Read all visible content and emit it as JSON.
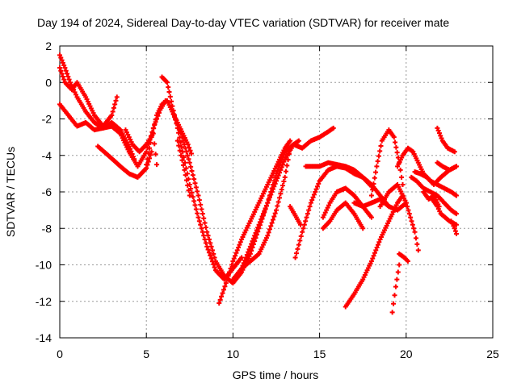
{
  "chart_data": {
    "type": "scatter",
    "title": "Day 194 of 2024, Sidereal Day-to-day VTEC variation (SDTVAR) for receiver mate",
    "xlabel": "GPS time / hours",
    "ylabel": "SDTVAR / TECUs",
    "xlim": [
      0,
      25
    ],
    "ylim": [
      -14,
      2
    ],
    "xticks": [
      0,
      5,
      10,
      15,
      20,
      25
    ],
    "yticks": [
      2,
      0,
      -2,
      -4,
      -6,
      -8,
      -10,
      -12,
      -14
    ],
    "grid": true,
    "marker": "+",
    "color": "#ff0000",
    "series": [
      {
        "x": [
          0,
          0.3,
          0.6,
          1.0,
          1.5,
          2.0,
          2.5,
          3.0,
          3.5,
          4.0,
          4.3
        ],
        "y": [
          1.5,
          0.8,
          0.0,
          -0.8,
          -1.6,
          -2.2,
          -2.5,
          -2.2,
          -2.6,
          -3.5,
          -4.2
        ]
      },
      {
        "x": [
          0,
          0.5,
          1.0,
          1.5,
          2.0,
          2.5,
          3.0,
          3.5,
          4.0,
          4.5,
          5.0,
          5.4,
          5.8,
          6.1
        ],
        "y": [
          -1.2,
          -1.8,
          -2.4,
          -2.2,
          -2.6,
          -2.5,
          -2.4,
          -2.8,
          -3.8,
          -4.6,
          -3.8,
          -2.5,
          -1.5,
          -1.0
        ]
      },
      {
        "x": [
          0,
          0.3,
          0.7,
          1.0,
          1.5,
          2.0,
          2.5,
          3.0,
          3.3
        ],
        "y": [
          0.8,
          0.0,
          -0.4,
          0.0,
          -0.8,
          -1.8,
          -2.4,
          -1.8,
          -0.8
        ]
      },
      {
        "x": [
          2.2,
          2.8,
          3.5,
          4.0,
          4.5,
          5.0,
          5.3
        ],
        "y": [
          -3.5,
          -4.0,
          -4.6,
          -5.0,
          -5.2,
          -4.7,
          -3.8
        ]
      },
      {
        "x": [
          3.8,
          4.2,
          4.6,
          5.0,
          5.4,
          5.6
        ],
        "y": [
          -2.6,
          -3.4,
          -3.8,
          -3.4,
          -2.8,
          -4.5
        ]
      },
      {
        "x": [
          5.0,
          5.3,
          5.6,
          5.9,
          6.2,
          6.5,
          6.8,
          7.1,
          7.4,
          7.6
        ],
        "y": [
          -4.5,
          -3.0,
          -1.8,
          -1.2,
          -1.0,
          -1.6,
          -2.2,
          -2.8,
          -3.4,
          -3.9
        ]
      },
      {
        "x": [
          5.9,
          6.2,
          6.5,
          6.8,
          7.1,
          7.5,
          8.0,
          8.5,
          9.0,
          9.5,
          10.0,
          10.5
        ],
        "y": [
          0.3,
          0.0,
          -1.3,
          -2.5,
          -3.8,
          -5.6,
          -7.4,
          -9.0,
          -10.3,
          -10.8,
          -10.2,
          -9.6
        ]
      },
      {
        "x": [
          6.8,
          7.2,
          7.5
        ],
        "y": [
          -3.2,
          -4.8,
          -6.2
        ]
      },
      {
        "x": [
          6.5,
          7.0,
          7.5,
          8.0,
          8.5,
          9.0,
          9.5,
          10.0,
          10.5,
          11.0,
          11.5,
          12.0,
          12.5,
          13.0,
          13.5,
          14.0,
          14.5,
          15.0,
          15.5,
          15.8
        ],
        "y": [
          -1.6,
          -2.8,
          -4.4,
          -6.2,
          -8.2,
          -9.8,
          -10.6,
          -11.0,
          -10.4,
          -9.4,
          -8.0,
          -6.6,
          -5.0,
          -3.8,
          -3.4,
          -3.6,
          -3.2,
          -3.0,
          -2.7,
          -2.5
        ]
      },
      {
        "x": [
          9.2,
          9.6,
          10.0,
          10.5,
          11.0,
          11.5,
          12.0,
          12.5,
          13.0,
          13.3
        ],
        "y": [
          -12.1,
          -11.0,
          -9.8,
          -8.6,
          -7.6,
          -6.6,
          -5.6,
          -4.6,
          -3.6,
          -3.2
        ]
      },
      {
        "x": [
          10.0,
          10.5,
          11.0,
          11.5,
          12.0,
          12.5,
          13.0,
          13.5,
          13.8
        ],
        "y": [
          -10.8,
          -10.2,
          -9.0,
          -7.8,
          -6.6,
          -5.4,
          -4.2,
          -3.4,
          -3.2
        ]
      },
      {
        "x": [
          10.5,
          11.0,
          11.5,
          12.0,
          12.5,
          13.0,
          13.3
        ],
        "y": [
          -10.2,
          -9.8,
          -9.4,
          -8.4,
          -7.0,
          -5.2,
          -3.6
        ]
      },
      {
        "x": [
          13.3,
          13.6,
          13.9
        ],
        "y": [
          -6.8,
          -7.3,
          -7.8
        ]
      },
      {
        "x": [
          13.6,
          14.0,
          14.5,
          15.0,
          15.5,
          16.0,
          16.5,
          17.0,
          17.5,
          18.0,
          18.5,
          19.0
        ],
        "y": [
          -9.6,
          -8.2,
          -6.6,
          -5.4,
          -4.8,
          -4.6,
          -4.7,
          -5.0,
          -5.2,
          -5.6,
          -6.2,
          -6.8
        ]
      },
      {
        "x": [
          14.2,
          15.0,
          15.5,
          16.0,
          16.5,
          17.0,
          17.5,
          18.0
        ],
        "y": [
          -4.6,
          -4.6,
          -4.4,
          -4.5,
          -4.6,
          -4.8,
          -5.2,
          -5.7
        ]
      },
      {
        "x": [
          15.2,
          15.6,
          16.0,
          16.5,
          17.0,
          17.5,
          18.0
        ],
        "y": [
          -7.4,
          -6.6,
          -6.0,
          -5.8,
          -6.2,
          -6.8,
          -7.4
        ]
      },
      {
        "x": [
          15.2,
          15.6,
          16.0,
          16.5,
          17.0,
          17.5
        ],
        "y": [
          -8.0,
          -7.6,
          -7.0,
          -6.6,
          -7.2,
          -8.0
        ]
      },
      {
        "x": [
          17.0,
          17.5,
          18.0,
          18.5,
          19.0,
          19.5,
          20.0
        ],
        "y": [
          -6.6,
          -6.8,
          -6.6,
          -6.4,
          -6.8,
          -7.0,
          -6.6
        ]
      },
      {
        "x": [
          16.5,
          17.0,
          17.5,
          18.0,
          18.5,
          19.0,
          19.5,
          19.8
        ],
        "y": [
          -12.3,
          -11.6,
          -10.8,
          -9.8,
          -8.6,
          -7.6,
          -6.6,
          -6.2
        ]
      },
      {
        "x": [
          18.0,
          18.3,
          18.6,
          19.0,
          19.3,
          19.6,
          19.8
        ],
        "y": [
          -6.2,
          -4.6,
          -3.2,
          -2.6,
          -3.0,
          -4.4,
          -5.6
        ]
      },
      {
        "x": [
          18.5,
          19.0,
          19.5,
          20.0,
          20.5,
          20.7
        ],
        "y": [
          -6.8,
          -6.0,
          -5.6,
          -6.6,
          -8.2,
          -9.2
        ]
      },
      {
        "x": [
          19.2,
          19.4,
          19.6
        ],
        "y": [
          -12.6,
          -11.2,
          -10.0
        ]
      },
      {
        "x": [
          19.6,
          19.9,
          20.1
        ],
        "y": [
          -9.4,
          -9.6,
          -9.8
        ]
      },
      {
        "x": [
          19.5,
          19.8,
          20.1,
          20.4,
          20.7,
          21.0,
          21.4,
          21.8,
          22.2,
          22.6,
          22.9
        ],
        "y": [
          -4.6,
          -4.0,
          -3.6,
          -3.8,
          -4.4,
          -5.0,
          -5.4,
          -5.6,
          -5.8,
          -6.0,
          -6.2
        ]
      },
      {
        "x": [
          20.3,
          20.6,
          21.0,
          21.4,
          21.8,
          22.2,
          22.6,
          22.9
        ],
        "y": [
          -5.2,
          -5.4,
          -5.8,
          -6.0,
          -6.2,
          -6.6,
          -7.0,
          -7.2
        ]
      },
      {
        "x": [
          20.5,
          20.8,
          21.2,
          21.6,
          22.0,
          22.5,
          22.9
        ],
        "y": [
          -4.9,
          -5.0,
          -5.2,
          -5.6,
          -5.2,
          -4.8,
          -4.6
        ]
      },
      {
        "x": [
          21.5,
          21.8,
          22.0,
          22.5,
          22.9
        ],
        "y": [
          -6.4,
          -6.8,
          -7.2,
          -7.6,
          -7.8
        ]
      },
      {
        "x": [
          21.8,
          22.1,
          22.4,
          22.8
        ],
        "y": [
          -2.5,
          -3.2,
          -3.6,
          -3.8
        ]
      },
      {
        "x": [
          21.8,
          22.1,
          22.5,
          22.9
        ],
        "y": [
          -4.4,
          -4.6,
          -4.8,
          -4.6
        ]
      },
      {
        "x": [
          22.6,
          22.8,
          22.9
        ],
        "y": [
          -7.6,
          -8.0,
          -8.3
        ]
      },
      {
        "x": [
          21.0,
          21.3,
          21.6,
          21.9
        ],
        "y": [
          -6.0,
          -6.4,
          -6.2,
          -6.8
        ]
      }
    ]
  }
}
